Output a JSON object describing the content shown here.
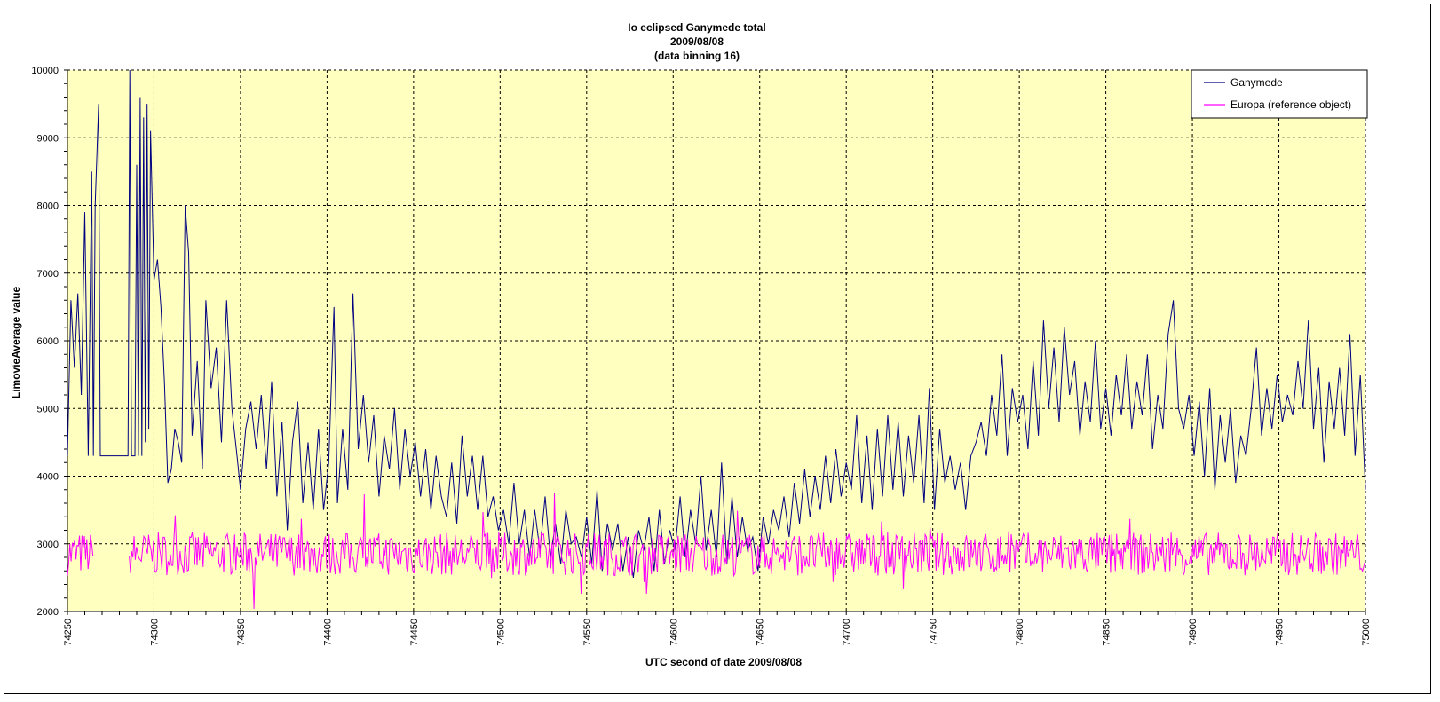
{
  "chart_data": {
    "type": "line",
    "title": "Io eclipsed Ganymede total",
    "subtitle": "2009/08/08",
    "subtitle2": "(data binning 16)",
    "xlabel": "UTC second  of date 2009/08/08",
    "ylabel": "LimovieAverage value",
    "xlim": [
      74250,
      75000
    ],
    "ylim": [
      2000,
      10000
    ],
    "x_ticks": [
      74250,
      74300,
      74350,
      74400,
      74450,
      74500,
      74550,
      74600,
      74650,
      74700,
      74750,
      74800,
      74850,
      74900,
      74950,
      75000
    ],
    "y_ticks": [
      2000,
      3000,
      4000,
      5000,
      6000,
      7000,
      8000,
      9000,
      10000
    ],
    "grid": true,
    "legend_position": "top-right",
    "plot_background": "#FFFFC0",
    "series": [
      {
        "name": "Ganymede",
        "color": "#000080",
        "points": [
          [
            74250,
            4300
          ],
          [
            74252,
            6600
          ],
          [
            74254,
            5600
          ],
          [
            74256,
            6700
          ],
          [
            74258,
            5200
          ],
          [
            74260,
            7900
          ],
          [
            74262,
            4300
          ],
          [
            74264,
            8500
          ],
          [
            74265,
            4300
          ],
          [
            74266,
            8000
          ],
          [
            74268,
            9500
          ],
          [
            74269,
            4300
          ],
          [
            74275,
            4300
          ],
          [
            74285,
            4300
          ],
          [
            74286,
            10000
          ],
          [
            74287,
            4300
          ],
          [
            74289,
            4300
          ],
          [
            74290,
            8600
          ],
          [
            74291,
            4300
          ],
          [
            74292,
            9600
          ],
          [
            74293,
            4300
          ],
          [
            74294,
            9300
          ],
          [
            74295,
            4500
          ],
          [
            74296,
            9500
          ],
          [
            74297,
            4700
          ],
          [
            74298,
            9100
          ],
          [
            74300,
            6900
          ],
          [
            74302,
            7200
          ],
          [
            74304,
            6500
          ],
          [
            74306,
            5400
          ],
          [
            74308,
            3900
          ],
          [
            74310,
            4100
          ],
          [
            74312,
            4700
          ],
          [
            74314,
            4500
          ],
          [
            74316,
            4200
          ],
          [
            74318,
            8000
          ],
          [
            74320,
            7300
          ],
          [
            74322,
            4600
          ],
          [
            74325,
            5700
          ],
          [
            74328,
            4100
          ],
          [
            74330,
            6600
          ],
          [
            74333,
            5300
          ],
          [
            74336,
            5900
          ],
          [
            74339,
            4500
          ],
          [
            74342,
            6600
          ],
          [
            74345,
            5000
          ],
          [
            74348,
            4300
          ],
          [
            74350,
            3800
          ],
          [
            74353,
            4700
          ],
          [
            74356,
            5100
          ],
          [
            74359,
            4400
          ],
          [
            74362,
            5200
          ],
          [
            74365,
            4100
          ],
          [
            74368,
            5400
          ],
          [
            74371,
            3700
          ],
          [
            74374,
            4800
          ],
          [
            74377,
            3200
          ],
          [
            74380,
            4500
          ],
          [
            74383,
            5100
          ],
          [
            74386,
            3600
          ],
          [
            74389,
            4500
          ],
          [
            74392,
            3500
          ],
          [
            74395,
            4700
          ],
          [
            74398,
            3500
          ],
          [
            74401,
            4200
          ],
          [
            74404,
            6500
          ],
          [
            74406,
            3600
          ],
          [
            74409,
            4700
          ],
          [
            74412,
            3800
          ],
          [
            74415,
            6700
          ],
          [
            74418,
            4400
          ],
          [
            74421,
            5200
          ],
          [
            74424,
            4200
          ],
          [
            74427,
            4900
          ],
          [
            74430,
            3700
          ],
          [
            74433,
            4600
          ],
          [
            74436,
            4100
          ],
          [
            74439,
            5000
          ],
          [
            74442,
            3800
          ],
          [
            74445,
            4700
          ],
          [
            74448,
            4000
          ],
          [
            74451,
            4500
          ],
          [
            74454,
            3700
          ],
          [
            74457,
            4400
          ],
          [
            74460,
            3500
          ],
          [
            74463,
            4300
          ],
          [
            74466,
            3700
          ],
          [
            74469,
            3400
          ],
          [
            74472,
            4200
          ],
          [
            74475,
            3300
          ],
          [
            74478,
            4600
          ],
          [
            74481,
            3700
          ],
          [
            74484,
            4300
          ],
          [
            74487,
            3500
          ],
          [
            74490,
            4300
          ],
          [
            74493,
            3400
          ],
          [
            74496,
            3700
          ],
          [
            74499,
            3200
          ],
          [
            74502,
            3500
          ],
          [
            74505,
            3000
          ],
          [
            74508,
            3900
          ],
          [
            74511,
            3000
          ],
          [
            74514,
            3500
          ],
          [
            74517,
            2800
          ],
          [
            74520,
            3500
          ],
          [
            74523,
            2900
          ],
          [
            74526,
            3700
          ],
          [
            74529,
            2800
          ],
          [
            74532,
            3300
          ],
          [
            74535,
            2700
          ],
          [
            74538,
            3500
          ],
          [
            74541,
            3000
          ],
          [
            74544,
            3100
          ],
          [
            74547,
            2800
          ],
          [
            74550,
            3400
          ],
          [
            74553,
            2700
          ],
          [
            74556,
            3800
          ],
          [
            74559,
            2600
          ],
          [
            74562,
            3300
          ],
          [
            74565,
            2900
          ],
          [
            74568,
            3300
          ],
          [
            74571,
            2600
          ],
          [
            74574,
            3100
          ],
          [
            74577,
            2500
          ],
          [
            74580,
            3200
          ],
          [
            74583,
            2900
          ],
          [
            74586,
            3400
          ],
          [
            74589,
            2600
          ],
          [
            74592,
            3500
          ],
          [
            74595,
            2700
          ],
          [
            74598,
            3200
          ],
          [
            74601,
            2900
          ],
          [
            74604,
            3700
          ],
          [
            74607,
            2800
          ],
          [
            74610,
            3500
          ],
          [
            74613,
            3000
          ],
          [
            74616,
            4000
          ],
          [
            74619,
            2900
          ],
          [
            74622,
            3500
          ],
          [
            74625,
            2800
          ],
          [
            74628,
            4200
          ],
          [
            74631,
            2700
          ],
          [
            74634,
            3700
          ],
          [
            74637,
            2800
          ],
          [
            74640,
            3400
          ],
          [
            74643,
            2900
          ],
          [
            74646,
            3100
          ],
          [
            74649,
            2600
          ],
          [
            74652,
            3400
          ],
          [
            74655,
            3000
          ],
          [
            74658,
            3500
          ],
          [
            74661,
            3200
          ],
          [
            74664,
            3700
          ],
          [
            74667,
            3100
          ],
          [
            74670,
            3900
          ],
          [
            74673,
            3300
          ],
          [
            74676,
            4100
          ],
          [
            74679,
            3400
          ],
          [
            74682,
            4000
          ],
          [
            74685,
            3500
          ],
          [
            74688,
            4300
          ],
          [
            74691,
            3600
          ],
          [
            74694,
            4400
          ],
          [
            74697,
            3700
          ],
          [
            74700,
            4200
          ],
          [
            74703,
            3800
          ],
          [
            74706,
            4900
          ],
          [
            74709,
            3600
          ],
          [
            74712,
            4600
          ],
          [
            74715,
            3500
          ],
          [
            74718,
            4700
          ],
          [
            74721,
            3700
          ],
          [
            74724,
            4900
          ],
          [
            74727,
            3800
          ],
          [
            74730,
            4800
          ],
          [
            74733,
            3700
          ],
          [
            74736,
            4600
          ],
          [
            74739,
            3900
          ],
          [
            74742,
            4900
          ],
          [
            74745,
            3600
          ],
          [
            74748,
            5300
          ],
          [
            74751,
            3500
          ],
          [
            74754,
            4700
          ],
          [
            74757,
            3900
          ],
          [
            74760,
            4300
          ],
          [
            74763,
            3800
          ],
          [
            74766,
            4200
          ],
          [
            74769,
            3500
          ],
          [
            74772,
            4300
          ],
          [
            74775,
            4500
          ],
          [
            74778,
            4800
          ],
          [
            74781,
            4300
          ],
          [
            74784,
            5200
          ],
          [
            74787,
            4600
          ],
          [
            74790,
            5800
          ],
          [
            74793,
            4300
          ],
          [
            74796,
            5300
          ],
          [
            74799,
            4800
          ],
          [
            74802,
            5200
          ],
          [
            74805,
            4400
          ],
          [
            74808,
            5700
          ],
          [
            74811,
            4600
          ],
          [
            74814,
            6300
          ],
          [
            74817,
            5000
          ],
          [
            74820,
            5900
          ],
          [
            74823,
            4800
          ],
          [
            74826,
            6200
          ],
          [
            74829,
            5200
          ],
          [
            74832,
            5700
          ],
          [
            74835,
            4600
          ],
          [
            74838,
            5400
          ],
          [
            74841,
            4800
          ],
          [
            74844,
            6000
          ],
          [
            74847,
            4700
          ],
          [
            74850,
            5300
          ],
          [
            74853,
            4600
          ],
          [
            74856,
            5500
          ],
          [
            74859,
            4900
          ],
          [
            74862,
            5800
          ],
          [
            74865,
            4700
          ],
          [
            74868,
            5400
          ],
          [
            74871,
            4900
          ],
          [
            74874,
            5800
          ],
          [
            74877,
            4400
          ],
          [
            74880,
            5200
          ],
          [
            74883,
            4700
          ],
          [
            74886,
            6100
          ],
          [
            74889,
            6600
          ],
          [
            74892,
            5000
          ],
          [
            74895,
            4700
          ],
          [
            74898,
            5200
          ],
          [
            74901,
            4300
          ],
          [
            74904,
            5100
          ],
          [
            74907,
            4000
          ],
          [
            74910,
            5300
          ],
          [
            74913,
            3800
          ],
          [
            74916,
            4900
          ],
          [
            74919,
            4200
          ],
          [
            74922,
            5000
          ],
          [
            74925,
            3900
          ],
          [
            74928,
            4600
          ],
          [
            74931,
            4300
          ],
          [
            74934,
            5000
          ],
          [
            74937,
            5900
          ],
          [
            74940,
            4600
          ],
          [
            74943,
            5300
          ],
          [
            74946,
            4700
          ],
          [
            74949,
            5500
          ],
          [
            74952,
            4800
          ],
          [
            74955,
            5200
          ],
          [
            74958,
            4900
          ],
          [
            74961,
            5700
          ],
          [
            74964,
            5000
          ],
          [
            74967,
            6300
          ],
          [
            74970,
            4700
          ],
          [
            74973,
            5600
          ],
          [
            74976,
            4200
          ],
          [
            74979,
            5400
          ],
          [
            74982,
            4700
          ],
          [
            74985,
            5600
          ],
          [
            74988,
            4600
          ],
          [
            74991,
            6100
          ],
          [
            74994,
            4300
          ],
          [
            74997,
            5500
          ],
          [
            75000,
            3800
          ]
        ]
      },
      {
        "name": "Europa (reference object)",
        "color": "#FF00FF",
        "base": 2850,
        "amplitude": 320,
        "flat_segment": [
          74264,
          74286,
          2820
        ]
      }
    ]
  }
}
